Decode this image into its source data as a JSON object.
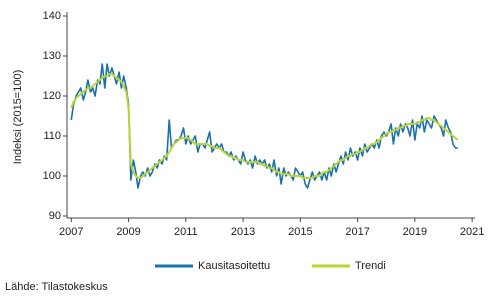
{
  "chart_data": {
    "type": "line",
    "y_label": "Indeksi (2015=100)",
    "source": "Lähde: Tilastokeskus",
    "xlim": [
      2006.85,
      2021.1
    ],
    "xticks": [
      2007,
      2009,
      2011,
      2013,
      2015,
      2017,
      2019,
      2021
    ],
    "ylim": [
      89.5,
      141
    ],
    "yticks": [
      90,
      100,
      110,
      120,
      130,
      140
    ],
    "grid": false,
    "legend": "bottom",
    "x": [
      2007,
      2007.08,
      2007.17,
      2007.25,
      2007.33,
      2007.42,
      2007.5,
      2007.58,
      2007.67,
      2007.75,
      2007.83,
      2007.92,
      2008,
      2008.08,
      2008.17,
      2008.25,
      2008.33,
      2008.42,
      2008.5,
      2008.58,
      2008.67,
      2008.75,
      2008.83,
      2008.92,
      2009,
      2009.08,
      2009.17,
      2009.25,
      2009.33,
      2009.42,
      2009.5,
      2009.58,
      2009.67,
      2009.75,
      2009.83,
      2009.92,
      2010,
      2010.08,
      2010.17,
      2010.25,
      2010.33,
      2010.42,
      2010.5,
      2010.58,
      2010.67,
      2010.75,
      2010.83,
      2010.92,
      2011,
      2011.08,
      2011.17,
      2011.25,
      2011.33,
      2011.42,
      2011.5,
      2011.58,
      2011.67,
      2011.75,
      2011.83,
      2011.92,
      2012,
      2012.08,
      2012.17,
      2012.25,
      2012.33,
      2012.42,
      2012.5,
      2012.58,
      2012.67,
      2012.75,
      2012.83,
      2012.92,
      2013,
      2013.08,
      2013.17,
      2013.25,
      2013.33,
      2013.42,
      2013.5,
      2013.58,
      2013.67,
      2013.75,
      2013.83,
      2013.92,
      2014,
      2014.08,
      2014.17,
      2014.25,
      2014.33,
      2014.42,
      2014.5,
      2014.58,
      2014.67,
      2014.75,
      2014.83,
      2014.92,
      2015,
      2015.08,
      2015.17,
      2015.25,
      2015.33,
      2015.42,
      2015.5,
      2015.58,
      2015.67,
      2015.75,
      2015.83,
      2015.92,
      2016,
      2016.08,
      2016.17,
      2016.25,
      2016.33,
      2016.42,
      2016.5,
      2016.58,
      2016.67,
      2016.75,
      2016.83,
      2016.92,
      2017,
      2017.08,
      2017.17,
      2017.25,
      2017.33,
      2017.42,
      2017.5,
      2017.58,
      2017.67,
      2017.75,
      2017.83,
      2017.92,
      2018,
      2018.08,
      2018.17,
      2018.25,
      2018.33,
      2018.42,
      2018.5,
      2018.58,
      2018.67,
      2018.75,
      2018.83,
      2018.92,
      2019,
      2019.08,
      2019.17,
      2019.25,
      2019.33,
      2019.42,
      2019.5,
      2019.58,
      2019.67,
      2019.75,
      2019.83,
      2019.92,
      2020,
      2020.08,
      2020.17,
      2020.25,
      2020.33,
      2020.42,
      2020.5
    ],
    "series": [
      {
        "name": "Kausitasoitettu",
        "color": "#1a6fae",
        "values": [
          114,
          118,
          120,
          121,
          122,
          119,
          121,
          124,
          121,
          122,
          120,
          124,
          123,
          128,
          122,
          128,
          125,
          127,
          125,
          123,
          126,
          122,
          125,
          122,
          118,
          99,
          104,
          101,
          97,
          100,
          101,
          100,
          102,
          100,
          101,
          103,
          102,
          104,
          103,
          105,
          104,
          114,
          107,
          108,
          109,
          109,
          110,
          112,
          108,
          110,
          108,
          109,
          110,
          106,
          108,
          108,
          107,
          109,
          111,
          106,
          107,
          108,
          107,
          108,
          106,
          106,
          105,
          106,
          104,
          105,
          104,
          103,
          106,
          104,
          103,
          104,
          102,
          105,
          103,
          104,
          103,
          104,
          102,
          103,
          101,
          104,
          100,
          102,
          98,
          102,
          100,
          101,
          100,
          99,
          102,
          101,
          100,
          101,
          98,
          97,
          99,
          101,
          99,
          100,
          101,
          99,
          101,
          99,
          102,
          100,
          103,
          101,
          103,
          105,
          103,
          106,
          104,
          107,
          105,
          106,
          104,
          107,
          105,
          108,
          106,
          107,
          108,
          107,
          109,
          107,
          110,
          111,
          110,
          111,
          113,
          108,
          112,
          110,
          113,
          111,
          113,
          112,
          110,
          114,
          109,
          113,
          112,
          115,
          111,
          114,
          113,
          112,
          115,
          114,
          113,
          112,
          110,
          114,
          112,
          111,
          108,
          107,
          107
        ]
      },
      {
        "name": "Trendi",
        "color": "#b9d531",
        "values": [
          117,
          118.5,
          119.5,
          120,
          120.5,
          121,
          121.5,
          122,
          122,
          122.5,
          123,
          123.5,
          124,
          124.5,
          125,
          125,
          125.5,
          125.5,
          125,
          124.5,
          124,
          123.5,
          122.5,
          121,
          117,
          103,
          101,
          100,
          99.5,
          99.5,
          100,
          100.5,
          101,
          101.5,
          102,
          102.5,
          103,
          103.5,
          104,
          104.5,
          105,
          106,
          107,
          108,
          108.5,
          109,
          109.5,
          109.5,
          109.5,
          109.5,
          109,
          108.5,
          108,
          108,
          108,
          108,
          108,
          108,
          107.5,
          107.5,
          107,
          107,
          107,
          106.5,
          106,
          105.5,
          105,
          105,
          104.5,
          104.5,
          104,
          104,
          104,
          103.5,
          103.5,
          103.5,
          103.5,
          103.5,
          103.5,
          103,
          103,
          102.5,
          102.5,
          102,
          102,
          101.5,
          101,
          101,
          100.5,
          100.5,
          100.5,
          100.5,
          100,
          100,
          100,
          100,
          100,
          99.5,
          99.5,
          99.5,
          99.5,
          99.5,
          100,
          100,
          100,
          100.5,
          101,
          101,
          101.5,
          102,
          102.5,
          103,
          103.5,
          104,
          104,
          104.5,
          105,
          105,
          105.5,
          105.5,
          106,
          106,
          106.5,
          107,
          107,
          107.5,
          108,
          108,
          108.5,
          109,
          109.5,
          110,
          110.5,
          111,
          111,
          111.5,
          111.5,
          112,
          112,
          112.5,
          112.5,
          113,
          113,
          113,
          113,
          113.5,
          113.5,
          114,
          114,
          114.5,
          114.5,
          114,
          114,
          113.5,
          113,
          112.5,
          112,
          111.5,
          111,
          110.5,
          110,
          109.5,
          109
        ]
      }
    ]
  }
}
